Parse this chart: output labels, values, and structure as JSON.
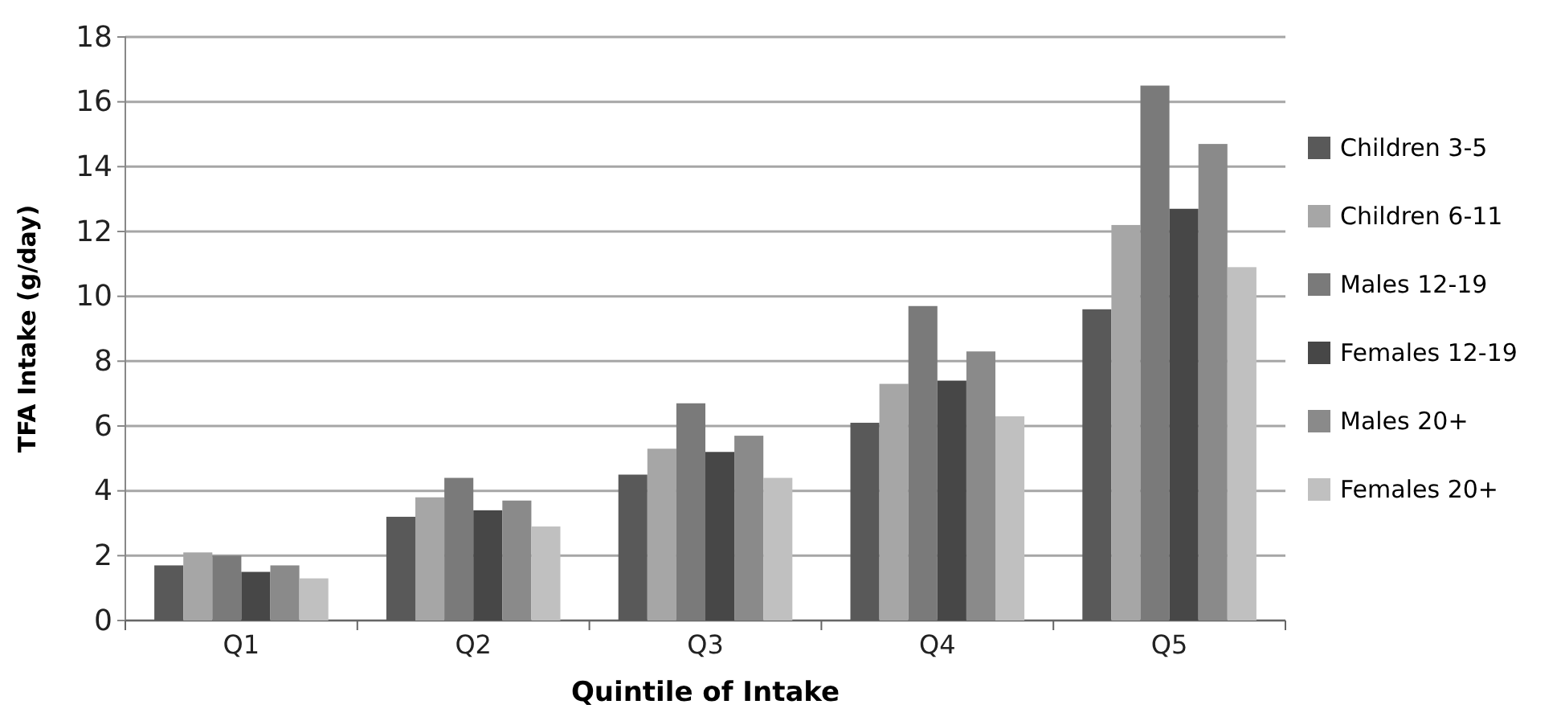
{
  "chart_data": {
    "type": "bar",
    "xlabel": "Quintile of Intake",
    "ylabel": "TFA Intake (g/day)",
    "categories": [
      "Q1",
      "Q2",
      "Q3",
      "Q4",
      "Q5"
    ],
    "series": [
      {
        "name": "Children 3-5",
        "color": "#595959",
        "values": [
          1.7,
          3.2,
          4.5,
          6.1,
          9.6
        ]
      },
      {
        "name": "Children 6-11",
        "color": "#a6a6a6",
        "values": [
          2.1,
          3.8,
          5.3,
          7.3,
          12.2
        ]
      },
      {
        "name": "Males 12-19",
        "color": "#7a7a7a",
        "values": [
          2.0,
          4.4,
          6.7,
          9.7,
          16.5
        ]
      },
      {
        "name": "Females 12-19",
        "color": "#474747",
        "values": [
          1.5,
          3.4,
          5.2,
          7.4,
          12.7
        ]
      },
      {
        "name": "Males 20+",
        "color": "#8a8a8a",
        "values": [
          1.7,
          3.7,
          5.7,
          8.3,
          14.7
        ]
      },
      {
        "name": "Females 20+",
        "color": "#c0c0c0",
        "values": [
          1.3,
          2.9,
          4.4,
          6.3,
          10.9
        ]
      }
    ],
    "ylim": [
      0,
      18
    ],
    "yticks": [
      0,
      2,
      4,
      6,
      8,
      10,
      12,
      14,
      16,
      18
    ],
    "grid": "y",
    "legend": "right"
  }
}
